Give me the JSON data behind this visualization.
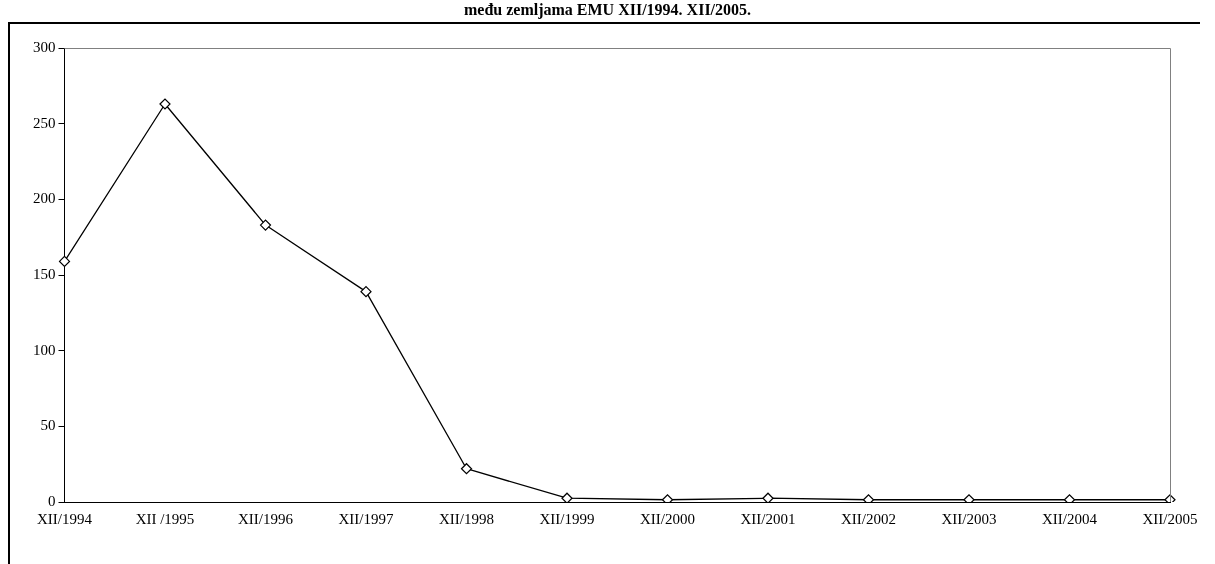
{
  "chart_data": {
    "type": "line",
    "title": "među zemljama EMU XII/1994. XII/2005.",
    "categories": [
      "XII/1994",
      "XII /1995",
      "XII/1996",
      "XII/1997",
      "XII/1998",
      "XII/1999",
      "XII/2000",
      "XII/2001",
      "XII/2002",
      "XII/2003",
      "XII/2004",
      "XII/2005"
    ],
    "series": [
      {
        "color": "#000000",
        "values": [
          159,
          263,
          183,
          139,
          22,
          2.5,
          1.5,
          2.5,
          1.5,
          1.5,
          1.5,
          1.5
        ]
      }
    ],
    "ylim": [
      0,
      300
    ],
    "yticks": [
      0,
      50,
      100,
      150,
      200,
      250,
      300
    ],
    "grid": false,
    "legend": false,
    "marker": "diamond",
    "line_style": "solid"
  }
}
